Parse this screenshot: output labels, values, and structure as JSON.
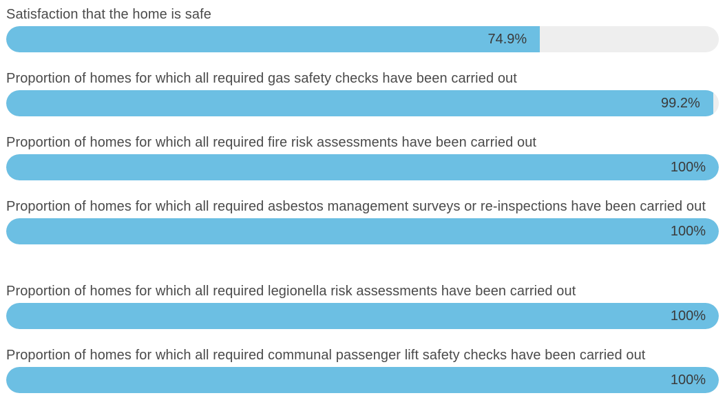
{
  "chart_data": {
    "type": "bar",
    "orientation": "horizontal",
    "unit": "%",
    "xlim": [
      0,
      100
    ],
    "grid": false,
    "colors": {
      "fill": "#6cbfe3",
      "track": "#eeeeee",
      "label_text": "#4a4a4a",
      "value_text": "#3a3a3a"
    },
    "categories": [
      "Satisfaction that the home is safe",
      "Proportion of homes for which all required gas safety checks have been carried out",
      "Proportion of homes for which all required fire risk assessments have been carried out",
      "Proportion of homes for which all required asbestos management surveys or re-inspections have been carried out",
      "Proportion of homes for which all required legionella risk assessments have been carried out",
      "Proportion of homes for which all required communal passenger lift safety checks have been carried out"
    ],
    "values": [
      74.9,
      99.2,
      100,
      100,
      100,
      100
    ],
    "value_labels": [
      "74.9%",
      "99.2%",
      "100%",
      "100%",
      "100%",
      "100%"
    ]
  }
}
